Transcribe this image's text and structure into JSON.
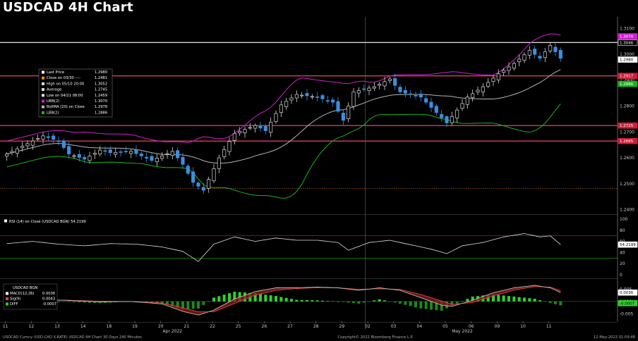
{
  "title": "USDCAD 4H Chart",
  "colors": {
    "background": "#000000",
    "candle_up": "#d9d9d9",
    "candle_down": "#3c8fe0",
    "upper_band": "#d21ed2",
    "middle_band": "#b4b4b4",
    "lower_band": "#19b419",
    "resistance_line": "#ff4d6d",
    "high_line": "#ffffff",
    "rsi_line": "#e0e0e0",
    "macd_line": "#ffffff",
    "signal_line": "#e04040",
    "diff_pos": "#2fd02f",
    "diff_neg": "#1a8a1a"
  },
  "legend_main": [
    {
      "label": "Last Price",
      "value": "1.2980",
      "color": "#ffffff"
    },
    {
      "label": "Close on 03/30 ----",
      "value": "1.2481",
      "color": "#ff8c00"
    },
    {
      "label": "High on 05/10 20:00",
      "value": "1.3052",
      "color": "#dddddd"
    },
    {
      "label": "Average",
      "value": "1.2745",
      "color": "#dddddd"
    },
    {
      "label": "Low on 04/21 08:00",
      "value": "1.2459",
      "color": "#dddddd"
    },
    {
      "label": "UBB(2)",
      "value": "1.3070",
      "color": "#d21ed2"
    },
    {
      "label": "BollMA (20)  on Close",
      "value": "1.2978",
      "color": "#b4b4b4"
    },
    {
      "label": "LBB(2)",
      "value": "1.2886",
      "color": "#19b419"
    }
  ],
  "legend_rsi": "RSI (14)  on Close (USDCAD BGN) 54.2199",
  "legend_macd": {
    "header": "USDCAD BGN",
    "rows": [
      {
        "label": "MACD(12,26)",
        "value": "0.0036",
        "color": "#ffffff"
      },
      {
        "label": "Sig(9)",
        "value": "0.0043",
        "color": "#e04040"
      },
      {
        "label": "DIFF",
        "value": "-0.0007",
        "color": "#2fd02f"
      }
    ]
  },
  "footer": {
    "left": "USDCAD Curncy (USD-CAD X-RATE) USDCAD 4H Chart 30 Days 240 Minutes",
    "center": "Copyright© 2022 Bloomberg Finance L.P.",
    "right": "12-May-2022 01:09:48"
  },
  "tags_main": [
    {
      "text": "1.3070",
      "value": 1.307,
      "bg": "#d21ed2",
      "fg": "#ffffff"
    },
    {
      "text": "1.3046",
      "value": 1.3046,
      "bg": "#000000",
      "fg": "#ffffff",
      "border": "#ffffff"
    },
    {
      "text": "1.2980",
      "value": 1.298,
      "bg": "#ffffff",
      "fg": "#000000"
    },
    {
      "text": "1.2917",
      "value": 1.2917,
      "bg": "#cc1f3a",
      "fg": "#ffffff"
    },
    {
      "text": "1.2886",
      "value": 1.2886,
      "bg": "#19b419",
      "fg": "#ffffff"
    },
    {
      "text": "1.2725",
      "value": 1.2725,
      "bg": "#cc1f3a",
      "fg": "#ffffff"
    },
    {
      "text": "1.2665",
      "value": 1.2665,
      "bg": "#cc1f3a",
      "fg": "#ffffff"
    }
  ],
  "tag_rsi": {
    "text": "54.2199",
    "value": 54.2199
  },
  "tags_macd": [
    {
      "text": "0.0036",
      "value": 0.0036,
      "bg": "#ffffff",
      "fg": "#000000"
    },
    {
      "text": "-0.0007",
      "value": -0.0007,
      "bg": "#2fd02f",
      "fg": "#000000"
    }
  ],
  "chart_data": {
    "type": "candlestick",
    "title": "USDCAD 4H Chart",
    "x_ticks": [
      {
        "label": "11",
        "i": 0
      },
      {
        "label": "12",
        "i": 5
      },
      {
        "label": "13",
        "i": 10
      },
      {
        "label": "14",
        "i": 15
      },
      {
        "label": "18",
        "i": 20
      },
      {
        "label": "19",
        "i": 25
      },
      {
        "label": "20",
        "i": 30
      },
      {
        "label": "21",
        "i": 35
      },
      {
        "label": "22",
        "i": 40
      },
      {
        "label": "25",
        "i": 45
      },
      {
        "label": "26",
        "i": 50
      },
      {
        "label": "27",
        "i": 55
      },
      {
        "label": "28",
        "i": 60
      },
      {
        "label": "29",
        "i": 65
      },
      {
        "label": "02",
        "i": 70
      },
      {
        "label": "03",
        "i": 75
      },
      {
        "label": "04",
        "i": 80
      },
      {
        "label": "05",
        "i": 85
      },
      {
        "label": "06",
        "i": 90
      },
      {
        "label": "09",
        "i": 95
      },
      {
        "label": "10",
        "i": 100
      },
      {
        "label": "11",
        "i": 105
      }
    ],
    "month_labels": [
      {
        "label": "Apr 2022",
        "i": 32
      },
      {
        "label": "May 2022",
        "i": 88
      }
    ],
    "price_ticks": [
      1.31,
      1.3,
      1.29,
      1.28,
      1.27,
      1.26,
      1.25,
      1.24
    ],
    "price_ylim": [
      1.2385,
      1.3145
    ],
    "hlines": [
      {
        "value": 1.3046,
        "color": "#ffffff"
      },
      {
        "value": 1.2917,
        "color": "#ff4d6d"
      },
      {
        "value": 1.2725,
        "color": "#ff4d6d"
      },
      {
        "value": 1.2665,
        "color": "#ff4d6d"
      },
      {
        "value": 1.2481,
        "color": "#ff8c00",
        "dashed": true
      }
    ],
    "close_anchors": [
      [
        0,
        1.2615
      ],
      [
        4,
        1.2655
      ],
      [
        7,
        1.2685
      ],
      [
        10,
        1.2665
      ],
      [
        12,
        1.2615
      ],
      [
        15,
        1.2595
      ],
      [
        18,
        1.263
      ],
      [
        20,
        1.262
      ],
      [
        24,
        1.2625
      ],
      [
        28,
        1.259
      ],
      [
        32,
        1.2625
      ],
      [
        34,
        1.2575
      ],
      [
        36,
        1.2505
      ],
      [
        38,
        1.2475
      ],
      [
        41,
        1.26
      ],
      [
        44,
        1.2695
      ],
      [
        48,
        1.2725
      ],
      [
        50,
        1.2705
      ],
      [
        53,
        1.2805
      ],
      [
        56,
        1.2845
      ],
      [
        60,
        1.2835
      ],
      [
        63,
        1.2815
      ],
      [
        65,
        1.2745
      ],
      [
        67,
        1.2855
      ],
      [
        71,
        1.2875
      ],
      [
        74,
        1.2905
      ],
      [
        76,
        1.2855
      ],
      [
        80,
        1.2835
      ],
      [
        83,
        1.2775
      ],
      [
        85,
        1.2735
      ],
      [
        87,
        1.2785
      ],
      [
        89,
        1.2835
      ],
      [
        92,
        1.2875
      ],
      [
        95,
        1.2925
      ],
      [
        98,
        1.2965
      ],
      [
        101,
        1.3015
      ],
      [
        103,
        1.2985
      ],
      [
        105,
        1.3035
      ],
      [
        107,
        1.2985
      ]
    ],
    "rsi_ticks": [
      100,
      80,
      60,
      40,
      20,
      0
    ],
    "rsi_ylim": [
      -5,
      105
    ],
    "rsi_levels": [
      70,
      30
    ],
    "rsi_anchors": [
      [
        0,
        56
      ],
      [
        5,
        60
      ],
      [
        10,
        55
      ],
      [
        15,
        52
      ],
      [
        20,
        56
      ],
      [
        25,
        55
      ],
      [
        30,
        50
      ],
      [
        34,
        42
      ],
      [
        37,
        24
      ],
      [
        40,
        55
      ],
      [
        44,
        68
      ],
      [
        48,
        60
      ],
      [
        52,
        66
      ],
      [
        56,
        62
      ],
      [
        60,
        62
      ],
      [
        64,
        58
      ],
      [
        66,
        44
      ],
      [
        70,
        58
      ],
      [
        74,
        62
      ],
      [
        78,
        54
      ],
      [
        82,
        46
      ],
      [
        85,
        38
      ],
      [
        88,
        52
      ],
      [
        92,
        58
      ],
      [
        96,
        68
      ],
      [
        100,
        74
      ],
      [
        103,
        68
      ],
      [
        105,
        70
      ],
      [
        107,
        54.2
      ]
    ],
    "macd_ticks": [
      0.005,
      0.0,
      -0.005
    ],
    "macd_ylim": [
      -0.008,
      0.0085
    ],
    "macd_anchors": [
      [
        0,
        0.0003
      ],
      [
        6,
        0.0008
      ],
      [
        12,
        0.0004
      ],
      [
        18,
        -0.0002
      ],
      [
        24,
        0.0
      ],
      [
        30,
        -0.001
      ],
      [
        34,
        -0.004
      ],
      [
        37,
        -0.0055
      ],
      [
        40,
        -0.0035
      ],
      [
        44,
        0.001
      ],
      [
        48,
        0.004
      ],
      [
        52,
        0.0055
      ],
      [
        56,
        0.0055
      ],
      [
        60,
        0.0058
      ],
      [
        64,
        0.0055
      ],
      [
        68,
        0.0045
      ],
      [
        72,
        0.0055
      ],
      [
        76,
        0.0045
      ],
      [
        80,
        0.0015
      ],
      [
        84,
        -0.0015
      ],
      [
        86,
        -0.002
      ],
      [
        90,
        0.0005
      ],
      [
        94,
        0.0035
      ],
      [
        98,
        0.0055
      ],
      [
        102,
        0.0065
      ],
      [
        105,
        0.0055
      ],
      [
        107,
        0.0036
      ]
    ],
    "signal_anchors": [
      [
        0,
        0.0002
      ],
      [
        6,
        0.0006
      ],
      [
        12,
        0.0005
      ],
      [
        18,
        0.0001
      ],
      [
        24,
        0.0
      ],
      [
        30,
        -0.0006
      ],
      [
        34,
        -0.0025
      ],
      [
        37,
        -0.0042
      ],
      [
        40,
        -0.0042
      ],
      [
        44,
        -0.0008
      ],
      [
        48,
        0.0025
      ],
      [
        52,
        0.0045
      ],
      [
        56,
        0.0052
      ],
      [
        60,
        0.0056
      ],
      [
        64,
        0.0055
      ],
      [
        68,
        0.0049
      ],
      [
        72,
        0.0051
      ],
      [
        76,
        0.0049
      ],
      [
        80,
        0.0028
      ],
      [
        84,
        0.0002
      ],
      [
        86,
        -0.0012
      ],
      [
        90,
        -0.0004
      ],
      [
        94,
        0.0022
      ],
      [
        98,
        0.0046
      ],
      [
        102,
        0.006
      ],
      [
        105,
        0.0058
      ],
      [
        107,
        0.0043
      ]
    ]
  }
}
